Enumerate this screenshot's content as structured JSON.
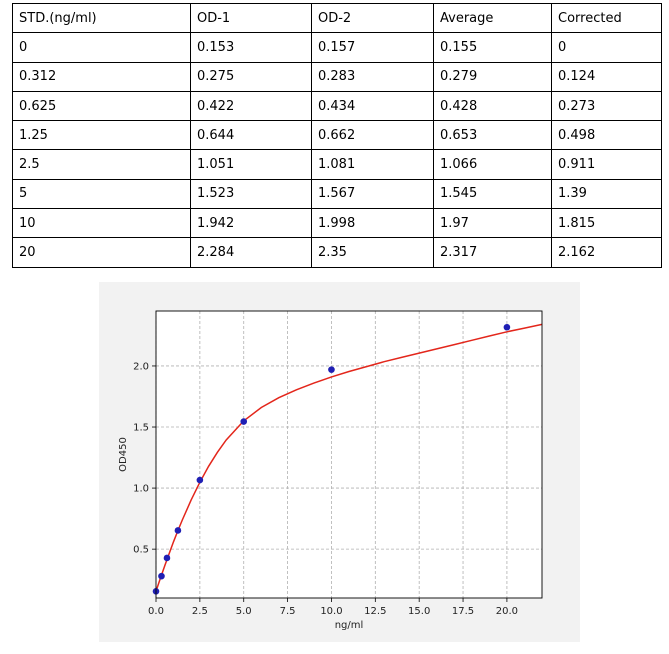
{
  "table": {
    "headers": [
      "STD.(ng/ml)",
      "OD-1",
      "OD-2",
      "Average",
      "Corrected"
    ],
    "rows": [
      [
        "0",
        "0.153",
        "0.157",
        "0.155",
        "0"
      ],
      [
        "0.312",
        "0.275",
        "0.283",
        "0.279",
        "0.124"
      ],
      [
        "0.625",
        "0.422",
        "0.434",
        "0.428",
        "0.273"
      ],
      [
        "1.25",
        "0.644",
        "0.662",
        "0.653",
        "0.498"
      ],
      [
        "2.5",
        "1.051",
        "1.081",
        "1.066",
        "0.911"
      ],
      [
        "5",
        "1.523",
        "1.567",
        "1.545",
        "1.39"
      ],
      [
        "10",
        "1.942",
        "1.998",
        "1.97",
        "1.815"
      ],
      [
        "20",
        "2.284",
        "2.35",
        "2.317",
        "2.162"
      ]
    ]
  },
  "chart_data": {
    "type": "scatter",
    "xlabel": "ng/ml",
    "ylabel": "OD450",
    "xlim": [
      0,
      22
    ],
    "ylim": [
      0.1,
      2.45
    ],
    "x_ticks": [
      "0.0",
      "2.5",
      "5.0",
      "7.5",
      "10.0",
      "12.5",
      "15.0",
      "17.5",
      "20.0"
    ],
    "y_ticks": [
      "0.5",
      "1.0",
      "1.5",
      "2.0"
    ],
    "grid": true,
    "points": {
      "x": [
        0,
        0.312,
        0.625,
        1.25,
        2.5,
        5,
        10,
        20
      ],
      "y": [
        0.155,
        0.279,
        0.428,
        0.653,
        1.066,
        1.545,
        1.97,
        2.317
      ]
    },
    "point_color": "#1f1fb4",
    "fit_curve": {
      "x": [
        0,
        0.25,
        0.5,
        0.75,
        1,
        1.25,
        1.5,
        2,
        2.5,
        3,
        3.5,
        4,
        5,
        6,
        7,
        8,
        9,
        10,
        11,
        12,
        13,
        14,
        15,
        16,
        17,
        18,
        19,
        20,
        21,
        22
      ],
      "y": [
        0.155,
        0.262,
        0.365,
        0.464,
        0.56,
        0.652,
        0.739,
        0.902,
        1.048,
        1.178,
        1.293,
        1.394,
        1.55,
        1.66,
        1.74,
        1.805,
        1.86,
        1.91,
        1.955,
        1.995,
        2.035,
        2.07,
        2.105,
        2.14,
        2.175,
        2.21,
        2.245,
        2.28,
        2.31,
        2.34
      ],
      "color": "#e3261b"
    }
  }
}
